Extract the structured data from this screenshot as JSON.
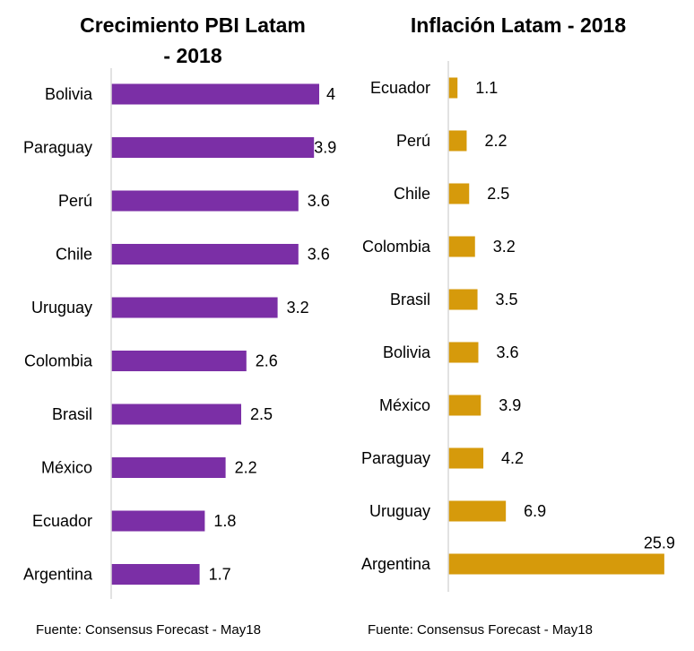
{
  "chart_data": [
    {
      "type": "bar",
      "orientation": "horizontal",
      "title_lines": [
        "Crecimiento PBI Latam",
        "- 2018"
      ],
      "categories": [
        "Bolivia",
        "Paraguay",
        "Perú",
        "Chile",
        "Uruguay",
        "Colombia",
        "Brasil",
        "México",
        "Ecuador",
        "Argentina"
      ],
      "values": [
        4,
        3.9,
        3.6,
        3.6,
        3.2,
        2.6,
        2.5,
        2.2,
        1.8,
        1.7
      ],
      "value_labels": [
        "4",
        "3.9",
        "3.6",
        "3.6",
        "3.2",
        "2.6",
        "2.5",
        "2.2",
        "1.8",
        "1.7"
      ],
      "xlim": [
        0,
        4
      ],
      "grid": false,
      "color": "#7B2FA6",
      "source": "Fuente: Consensus Forecast - May18"
    },
    {
      "type": "bar",
      "orientation": "horizontal",
      "title_lines": [
        "Inflación Latam - 2018"
      ],
      "categories": [
        "Ecuador",
        "Perú",
        "Chile",
        "Colombia",
        "Brasil",
        "Bolivia",
        "México",
        "Paraguay",
        "Uruguay",
        "Argentina"
      ],
      "values": [
        1.1,
        2.2,
        2.5,
        3.2,
        3.5,
        3.6,
        3.9,
        4.2,
        6.9,
        25.9
      ],
      "value_labels": [
        "1.1",
        "2.2",
        "2.5",
        "3.2",
        "3.5",
        "3.6",
        "3.9",
        "4.2",
        "6.9",
        "25.9"
      ],
      "xlim": [
        0,
        25.9
      ],
      "grid": false,
      "color": "#D69A0B",
      "source": "Fuente: Consensus Forecast - May18"
    }
  ]
}
